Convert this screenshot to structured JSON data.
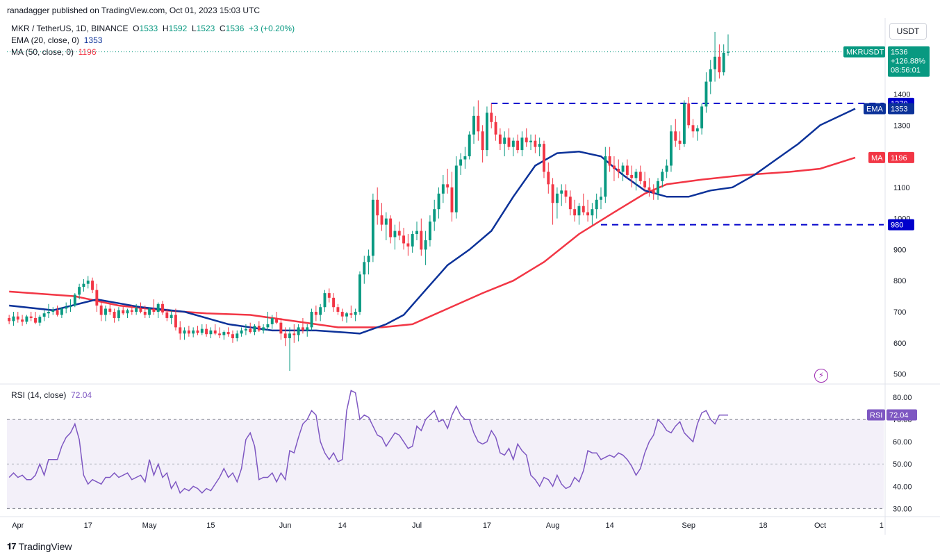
{
  "header": {
    "publisher": "ranadagger published on TradingView.com, Oct 01, 2023 15:03 UTC",
    "symbol": "MKR / TetherUS, 1D, BINANCE",
    "ohlc": {
      "o_label": "O",
      "o": "1533",
      "h_label": "H",
      "h": "1592",
      "l_label": "L",
      "l": "1523",
      "c_label": "C",
      "c": "1536",
      "change": "+3 (+0.20%)"
    },
    "ema_label": "EMA (20, close, 0)",
    "ema_value": "1353",
    "ma_label": "MA (50, close, 0)",
    "ma_value": "1196",
    "rsi_label": "RSI (14, close)",
    "rsi_value": "72.04"
  },
  "currency_button": "USDT",
  "footer_brand": "TradingView",
  "price_badge": {
    "symbol": "MKRUSDT",
    "price": "1536",
    "change": "+126.88%",
    "countdown": "08:56:01"
  },
  "level_labels": {
    "resistance": "1370",
    "support": "980",
    "ema": "EMA",
    "ema_value": "1353",
    "ma": "MA",
    "ma_value": "1196",
    "rsi": "RSI",
    "rsi_value": "72.04"
  },
  "colors": {
    "up": "#089981",
    "down": "#f23645",
    "ema": "#0c3299",
    "ma": "#f23645",
    "rsi": "#7e57c2",
    "level": "#0000cc",
    "rsi_band": "#7e57c2"
  },
  "chart_data": {
    "type": "candlestick",
    "title": "MKR / TetherUS, 1D, BINANCE",
    "y_axis_ticks": [
      500,
      600,
      700,
      800,
      900,
      1000,
      1100,
      1200,
      1300,
      1400
    ],
    "y_axis_tick_labels": [
      "500",
      "600",
      "700",
      "800",
      "900",
      "1000",
      "1100",
      "1200",
      "1300",
      "1400"
    ],
    "ylim": [
      470,
      1640
    ],
    "x_axis_labels": [
      {
        "label": "Apr",
        "index": 2
      },
      {
        "label": "17",
        "index": 18
      },
      {
        "label": "May",
        "index": 32
      },
      {
        "label": "15",
        "index": 46
      },
      {
        "label": "Jun",
        "index": 63
      },
      {
        "label": "14",
        "index": 76
      },
      {
        "label": "Jul",
        "index": 93
      },
      {
        "label": "17",
        "index": 109
      },
      {
        "label": "Aug",
        "index": 124
      },
      {
        "label": "14",
        "index": 137
      },
      {
        "label": "Sep",
        "index": 155
      },
      {
        "label": "18",
        "index": 172
      },
      {
        "label": "Oct",
        "index": 185
      },
      {
        "label": "1",
        "index": 199
      }
    ],
    "horizontal_levels": [
      {
        "name": "resistance",
        "value": 1370,
        "from_index": 110
      },
      {
        "name": "support",
        "value": 980,
        "from_index": 135
      }
    ],
    "candles": [
      [
        680,
        690,
        660,
        670
      ],
      [
        670,
        700,
        655,
        685
      ],
      [
        685,
        700,
        665,
        675
      ],
      [
        675,
        690,
        655,
        668
      ],
      [
        668,
        690,
        660,
        685
      ],
      [
        685,
        700,
        670,
        680
      ],
      [
        680,
        700,
        660,
        665
      ],
      [
        665,
        690,
        655,
        684
      ],
      [
        684,
        705,
        670,
        695
      ],
      [
        695,
        725,
        680,
        700
      ],
      [
        700,
        715,
        690,
        705
      ],
      [
        705,
        720,
        685,
        690
      ],
      [
        690,
        715,
        680,
        710
      ],
      [
        710,
        730,
        695,
        715
      ],
      [
        715,
        740,
        700,
        720
      ],
      [
        720,
        760,
        715,
        755
      ],
      [
        755,
        790,
        740,
        780
      ],
      [
        780,
        805,
        765,
        790
      ],
      [
        790,
        815,
        775,
        800
      ],
      [
        800,
        810,
        760,
        770
      ],
      [
        770,
        790,
        700,
        720
      ],
      [
        720,
        730,
        670,
        690
      ],
      [
        690,
        720,
        670,
        710
      ],
      [
        710,
        725,
        690,
        700
      ],
      [
        700,
        710,
        665,
        680
      ],
      [
        680,
        715,
        670,
        705
      ],
      [
        705,
        720,
        690,
        695
      ],
      [
        695,
        710,
        680,
        705
      ],
      [
        705,
        720,
        690,
        700
      ],
      [
        700,
        725,
        690,
        712
      ],
      [
        712,
        730,
        695,
        700
      ],
      [
        700,
        720,
        680,
        690
      ],
      [
        690,
        715,
        680,
        710
      ],
      [
        710,
        740,
        690,
        700
      ],
      [
        700,
        730,
        680,
        725
      ],
      [
        725,
        735,
        690,
        698
      ],
      [
        698,
        710,
        670,
        680
      ],
      [
        680,
        705,
        660,
        690
      ],
      [
        690,
        710,
        640,
        650
      ],
      [
        650,
        670,
        610,
        630
      ],
      [
        630,
        650,
        610,
        640
      ],
      [
        640,
        655,
        620,
        630
      ],
      [
        630,
        650,
        618,
        640
      ],
      [
        640,
        655,
        625,
        632
      ],
      [
        632,
        660,
        625,
        645
      ],
      [
        645,
        660,
        620,
        628
      ],
      [
        628,
        650,
        615,
        640
      ],
      [
        640,
        660,
        625,
        630
      ],
      [
        630,
        650,
        615,
        625
      ],
      [
        625,
        640,
        610,
        635
      ],
      [
        635,
        650,
        620,
        628
      ],
      [
        628,
        640,
        600,
        615
      ],
      [
        615,
        640,
        605,
        630
      ],
      [
        630,
        650,
        620,
        640
      ],
      [
        640,
        660,
        625,
        645
      ],
      [
        645,
        665,
        630,
        635
      ],
      [
        635,
        660,
        625,
        655
      ],
      [
        655,
        670,
        635,
        640
      ],
      [
        640,
        660,
        630,
        650
      ],
      [
        650,
        700,
        640,
        660
      ],
      [
        660,
        690,
        645,
        680
      ],
      [
        680,
        700,
        660,
        665
      ],
      [
        665,
        680,
        610,
        630
      ],
      [
        630,
        650,
        590,
        615
      ],
      [
        615,
        650,
        510,
        630
      ],
      [
        630,
        660,
        600,
        625
      ],
      [
        625,
        660,
        605,
        650
      ],
      [
        650,
        680,
        630,
        640
      ],
      [
        640,
        660,
        620,
        650
      ],
      [
        650,
        710,
        640,
        700
      ],
      [
        700,
        720,
        670,
        690
      ],
      [
        690,
        725,
        670,
        715
      ],
      [
        715,
        770,
        700,
        760
      ],
      [
        760,
        775,
        730,
        745
      ],
      [
        745,
        760,
        700,
        715
      ],
      [
        715,
        725,
        690,
        700
      ],
      [
        700,
        710,
        670,
        685
      ],
      [
        685,
        700,
        665,
        695
      ],
      [
        695,
        720,
        680,
        690
      ],
      [
        690,
        710,
        670,
        700
      ],
      [
        700,
        830,
        690,
        820
      ],
      [
        820,
        880,
        790,
        860
      ],
      [
        860,
        900,
        820,
        880
      ],
      [
        880,
        1080,
        860,
        1060
      ],
      [
        1060,
        1100,
        980,
        1010
      ],
      [
        1010,
        1050,
        960,
        980
      ],
      [
        980,
        1020,
        930,
        1000
      ],
      [
        1000,
        1010,
        920,
        940
      ],
      [
        940,
        980,
        900,
        960
      ],
      [
        960,
        990,
        930,
        945
      ],
      [
        945,
        970,
        900,
        920
      ],
      [
        920,
        950,
        880,
        910
      ],
      [
        910,
        960,
        890,
        950
      ],
      [
        950,
        990,
        930,
        960
      ],
      [
        960,
        1000,
        880,
        900
      ],
      [
        900,
        960,
        850,
        930
      ],
      [
        930,
        1010,
        910,
        990
      ],
      [
        990,
        1060,
        960,
        1030
      ],
      [
        1030,
        1100,
        1000,
        1080
      ],
      [
        1080,
        1140,
        1050,
        1110
      ],
      [
        1110,
        1160,
        1080,
        1100
      ],
      [
        1100,
        1150,
        990,
        1020
      ],
      [
        1020,
        1200,
        1000,
        1170
      ],
      [
        1170,
        1210,
        1140,
        1190
      ],
      [
        1190,
        1230,
        1160,
        1200
      ],
      [
        1200,
        1280,
        1190,
        1270
      ],
      [
        1270,
        1360,
        1240,
        1330
      ],
      [
        1330,
        1380,
        1250,
        1280
      ],
      [
        1280,
        1300,
        1180,
        1220
      ],
      [
        1220,
        1360,
        1200,
        1340
      ],
      [
        1340,
        1370,
        1290,
        1310
      ],
      [
        1310,
        1330,
        1250,
        1270
      ],
      [
        1270,
        1290,
        1220,
        1240
      ],
      [
        1240,
        1280,
        1200,
        1260
      ],
      [
        1260,
        1290,
        1220,
        1230
      ],
      [
        1230,
        1260,
        1200,
        1250
      ],
      [
        1250,
        1270,
        1210,
        1220
      ],
      [
        1220,
        1280,
        1200,
        1260
      ],
      [
        1260,
        1290,
        1230,
        1245
      ],
      [
        1245,
        1270,
        1220,
        1250
      ],
      [
        1250,
        1270,
        1210,
        1230
      ],
      [
        1230,
        1260,
        1200,
        1240
      ],
      [
        1240,
        1250,
        1130,
        1150
      ],
      [
        1150,
        1180,
        1080,
        1110
      ],
      [
        1110,
        1130,
        980,
        1050
      ],
      [
        1050,
        1100,
        1000,
        1080
      ],
      [
        1080,
        1110,
        1040,
        1090
      ],
      [
        1090,
        1110,
        1050,
        1070
      ],
      [
        1070,
        1090,
        1010,
        1030
      ],
      [
        1030,
        1060,
        990,
        1010
      ],
      [
        1010,
        1050,
        980,
        1040
      ],
      [
        1040,
        1080,
        1010,
        1020
      ],
      [
        1020,
        1060,
        990,
        1010
      ],
      [
        1010,
        1050,
        980,
        1030
      ],
      [
        1030,
        1080,
        1000,
        1060
      ],
      [
        1060,
        1100,
        1030,
        1070
      ],
      [
        1070,
        1230,
        1050,
        1200
      ],
      [
        1200,
        1230,
        1150,
        1170
      ],
      [
        1170,
        1200,
        1120,
        1160
      ],
      [
        1160,
        1190,
        1130,
        1150
      ],
      [
        1150,
        1180,
        1120,
        1170
      ],
      [
        1170,
        1190,
        1130,
        1140
      ],
      [
        1140,
        1170,
        1100,
        1130
      ],
      [
        1130,
        1160,
        1090,
        1150
      ],
      [
        1150,
        1170,
        1110,
        1120
      ],
      [
        1120,
        1150,
        1090,
        1100
      ],
      [
        1100,
        1130,
        1070,
        1090
      ],
      [
        1090,
        1110,
        1060,
        1080
      ],
      [
        1080,
        1130,
        1060,
        1120
      ],
      [
        1120,
        1160,
        1100,
        1150
      ],
      [
        1150,
        1190,
        1130,
        1170
      ],
      [
        1170,
        1300,
        1150,
        1280
      ],
      [
        1280,
        1320,
        1230,
        1250
      ],
      [
        1250,
        1280,
        1220,
        1240
      ],
      [
        1240,
        1380,
        1230,
        1370
      ],
      [
        1370,
        1390,
        1290,
        1300
      ],
      [
        1300,
        1320,
        1260,
        1280
      ],
      [
        1280,
        1300,
        1250,
        1290
      ],
      [
        1290,
        1370,
        1270,
        1360
      ],
      [
        1360,
        1470,
        1340,
        1440
      ],
      [
        1440,
        1510,
        1400,
        1480
      ],
      [
        1480,
        1600,
        1440,
        1520
      ],
      [
        1520,
        1560,
        1450,
        1470
      ],
      [
        1470,
        1560,
        1460,
        1533
      ],
      [
        1533,
        1592,
        1523,
        1536
      ]
    ],
    "ema": {
      "name": "EMA (20, close, 0)",
      "last": 1353,
      "points": [
        [
          0,
          720
        ],
        [
          10,
          705
        ],
        [
          20,
          740
        ],
        [
          30,
          715
        ],
        [
          40,
          700
        ],
        [
          50,
          660
        ],
        [
          60,
          640
        ],
        [
          70,
          640
        ],
        [
          80,
          630
        ],
        [
          86,
          660
        ],
        [
          90,
          690
        ],
        [
          95,
          770
        ],
        [
          100,
          850
        ],
        [
          105,
          900
        ],
        [
          110,
          960
        ],
        [
          115,
          1070
        ],
        [
          120,
          1170
        ],
        [
          125,
          1210
        ],
        [
          130,
          1215
        ],
        [
          135,
          1200
        ],
        [
          140,
          1140
        ],
        [
          145,
          1090
        ],
        [
          150,
          1070
        ],
        [
          155,
          1070
        ],
        [
          160,
          1090
        ],
        [
          165,
          1100
        ],
        [
          170,
          1140
        ],
        [
          175,
          1190
        ],
        [
          180,
          1240
        ],
        [
          185,
          1300
        ],
        [
          193,
          1353
        ]
      ]
    },
    "ma": {
      "name": "MA (50, close, 0)",
      "last": 1196,
      "points": [
        [
          0,
          765
        ],
        [
          15,
          750
        ],
        [
          25,
          720
        ],
        [
          35,
          705
        ],
        [
          45,
          695
        ],
        [
          55,
          690
        ],
        [
          65,
          670
        ],
        [
          75,
          650
        ],
        [
          85,
          650
        ],
        [
          92,
          660
        ],
        [
          100,
          710
        ],
        [
          108,
          760
        ],
        [
          115,
          800
        ],
        [
          122,
          860
        ],
        [
          130,
          950
        ],
        [
          138,
          1020
        ],
        [
          145,
          1080
        ],
        [
          150,
          1110
        ],
        [
          158,
          1125
        ],
        [
          168,
          1140
        ],
        [
          178,
          1150
        ],
        [
          185,
          1160
        ],
        [
          193,
          1196
        ]
      ]
    },
    "rsi": {
      "name": "RSI (14, close)",
      "last": 72.04,
      "ylim": [
        27,
        85
      ],
      "ticks": [
        30,
        40,
        50,
        60,
        70,
        80
      ],
      "tick_labels": [
        "30.00",
        "40.00",
        "50.00",
        "60.00",
        "70.00",
        "80.00"
      ],
      "band": [
        30,
        70
      ],
      "midline": 50,
      "values": [
        44,
        46,
        44,
        45,
        43,
        43,
        45,
        50,
        45,
        52,
        52,
        52,
        58,
        62,
        64,
        68,
        61,
        45,
        41,
        43,
        42,
        41,
        44,
        44,
        46,
        44,
        45,
        46,
        43,
        44,
        45,
        42,
        52,
        45,
        50,
        44,
        46,
        39,
        42,
        37,
        39,
        38,
        40,
        39,
        37,
        39,
        38,
        41,
        44,
        48,
        44,
        46,
        42,
        48,
        61,
        64,
        58,
        43,
        44,
        44,
        46,
        42,
        46,
        43,
        56,
        55,
        62,
        68,
        70,
        74,
        72,
        60,
        55,
        52,
        55,
        51,
        52,
        74,
        83,
        82,
        70,
        72,
        71,
        67,
        63,
        62,
        58,
        61,
        64,
        63,
        60,
        57,
        58,
        67,
        65,
        70,
        72,
        74,
        69,
        70,
        66,
        72,
        76,
        72,
        70,
        70,
        64,
        60,
        59,
        60,
        65,
        62,
        55,
        54,
        57,
        52,
        59,
        56,
        54,
        45,
        43,
        40,
        44,
        43,
        40,
        45,
        41,
        39,
        40,
        44,
        42,
        47,
        56,
        55,
        55,
        52,
        53,
        54,
        53,
        55,
        54,
        52,
        49,
        45,
        48,
        55,
        60,
        63,
        70,
        68,
        65,
        64,
        67,
        69,
        64,
        62,
        60,
        68,
        73,
        74,
        70,
        68,
        72,
        72,
        72
      ]
    }
  }
}
